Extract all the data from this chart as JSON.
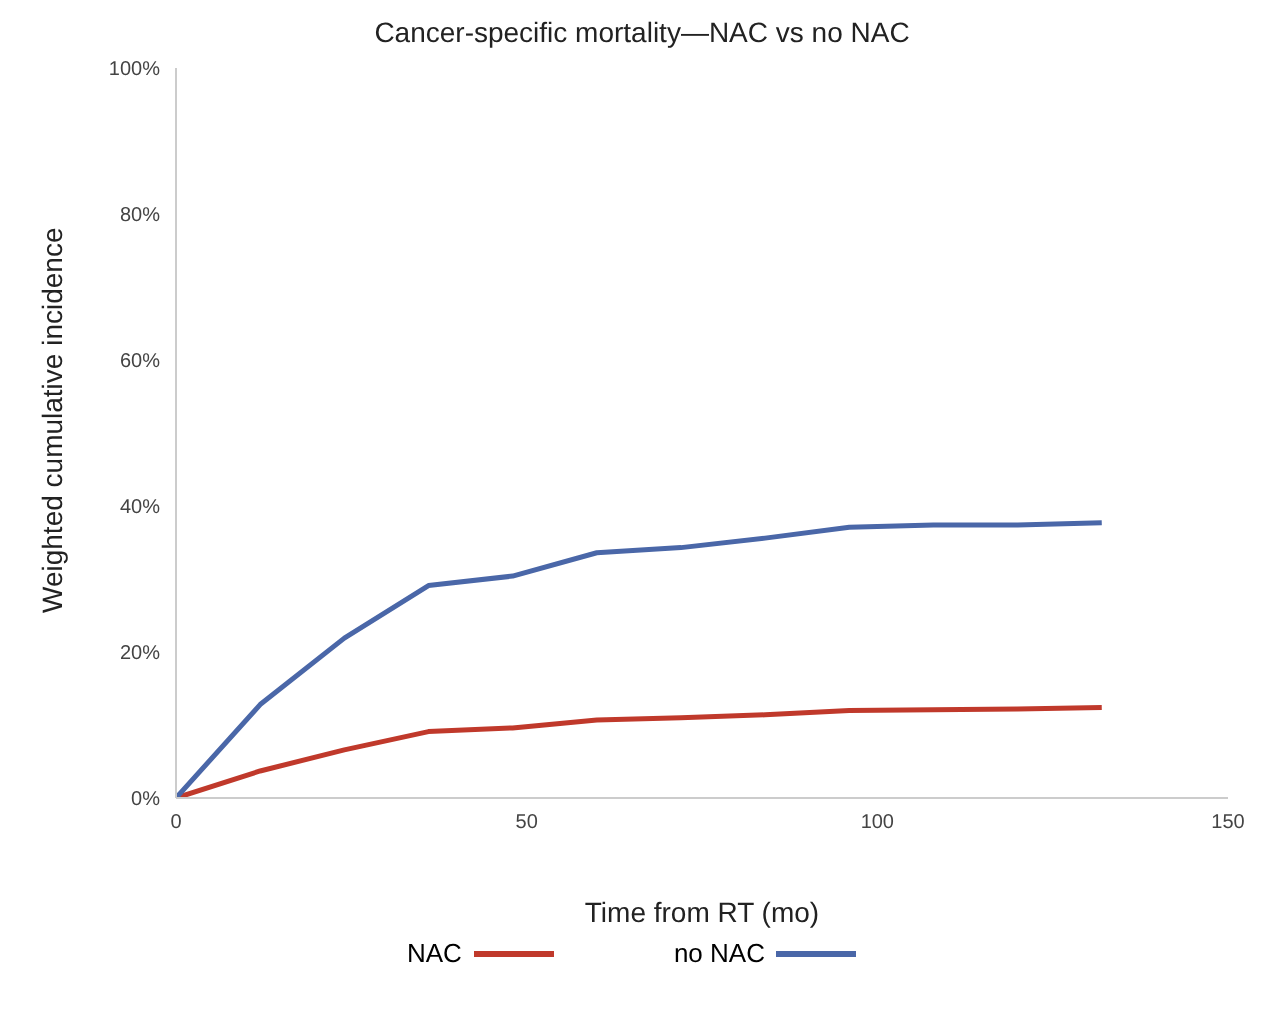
{
  "chart_data": {
    "type": "line",
    "title": "Cancer-specific mortality—NAC vs no NAC",
    "xlabel": "Time from RT (mo)",
    "ylabel": "Weighted cumulative incidence",
    "x": [
      0,
      12,
      24,
      36,
      48,
      60,
      72,
      84,
      96,
      108,
      120,
      132
    ],
    "series": [
      {
        "name": "NAC",
        "color": "#c0392b",
        "values": [
          0,
          3.7,
          6.6,
          9.1,
          9.6,
          10.7,
          11.0,
          11.4,
          12.0,
          12.1,
          12.2,
          12.4
        ]
      },
      {
        "name": "no NAC",
        "color": "#4a67a8",
        "values": [
          0,
          12.8,
          21.9,
          29.1,
          30.4,
          33.6,
          34.3,
          35.6,
          37.1,
          37.4,
          37.4,
          37.7
        ]
      }
    ],
    "xlim": [
      0,
      150
    ],
    "xticks": [
      0,
      50,
      100,
      150
    ],
    "ylim": [
      0,
      100
    ],
    "yticks": [
      {
        "value": 0,
        "label": "0%"
      },
      {
        "value": 20,
        "label": "20%"
      },
      {
        "value": 40,
        "label": "40%"
      },
      {
        "value": 60,
        "label": "60%"
      },
      {
        "value": 80,
        "label": "80%"
      },
      {
        "value": 100,
        "label": "100%"
      }
    ],
    "grid": false,
    "legend": "bottom",
    "marker": "none",
    "line_style": "solid"
  }
}
